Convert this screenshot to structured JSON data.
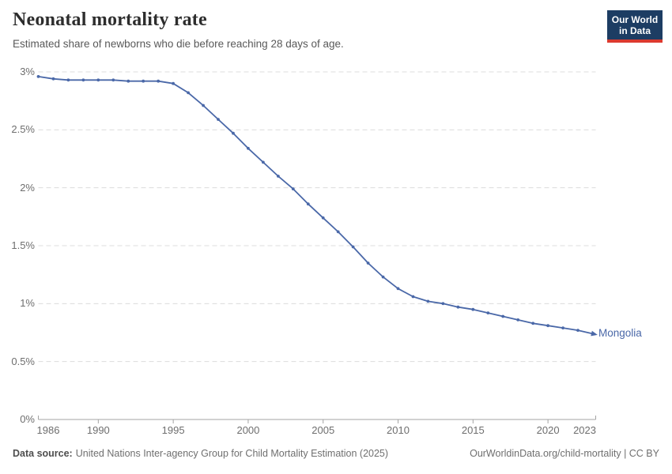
{
  "header": {
    "title": "Neonatal mortality rate",
    "subtitle": "Estimated share of newborns who die before reaching 28 days of age.",
    "logo": {
      "line1": "Our World",
      "line2": "in Data",
      "bg": "#1d3d63",
      "accent": "#dc3a2f"
    }
  },
  "chart_data": {
    "type": "line",
    "title": "Neonatal mortality rate",
    "unit": "%",
    "xlim": [
      1986,
      2023
    ],
    "ylim": [
      0,
      3
    ],
    "grid": "horizontal-dashed",
    "legend_position": "end-of-line-label",
    "colors": {
      "grid": "#dcdcdc",
      "axis": "#a3a3a3",
      "tick_text": "#6e6e6e"
    },
    "x_ticks": [
      {
        "value": 1986,
        "label": "1986"
      },
      {
        "value": 1990,
        "label": "1990"
      },
      {
        "value": 1995,
        "label": "1995"
      },
      {
        "value": 2000,
        "label": "2000"
      },
      {
        "value": 2005,
        "label": "2005"
      },
      {
        "value": 2010,
        "label": "2010"
      },
      {
        "value": 2015,
        "label": "2015"
      },
      {
        "value": 2020,
        "label": "2020"
      },
      {
        "value": 2023,
        "label": "2023"
      }
    ],
    "y_ticks": [
      {
        "value": 0,
        "label": "0%"
      },
      {
        "value": 0.5,
        "label": "0.5%"
      },
      {
        "value": 1,
        "label": "1%"
      },
      {
        "value": 1.5,
        "label": "1.5%"
      },
      {
        "value": 2,
        "label": "2%"
      },
      {
        "value": 2.5,
        "label": "2.5%"
      },
      {
        "value": 3,
        "label": "3%"
      }
    ],
    "series": [
      {
        "name": "Mongolia",
        "color": "#4a68a8",
        "x": [
          1986,
          1987,
          1988,
          1989,
          1990,
          1991,
          1992,
          1993,
          1994,
          1995,
          1996,
          1997,
          1998,
          1999,
          2000,
          2001,
          2002,
          2003,
          2004,
          2005,
          2006,
          2007,
          2008,
          2009,
          2010,
          2011,
          2012,
          2013,
          2014,
          2015,
          2016,
          2017,
          2018,
          2019,
          2020,
          2021,
          2022,
          2023
        ],
        "values": [
          2.96,
          2.94,
          2.93,
          2.93,
          2.93,
          2.93,
          2.92,
          2.92,
          2.92,
          2.9,
          2.82,
          2.71,
          2.59,
          2.47,
          2.34,
          2.22,
          2.1,
          1.99,
          1.86,
          1.74,
          1.62,
          1.49,
          1.35,
          1.23,
          1.13,
          1.06,
          1.02,
          1.0,
          0.97,
          0.95,
          0.92,
          0.89,
          0.86,
          0.83,
          0.81,
          0.79,
          0.77,
          0.74
        ]
      }
    ]
  },
  "footer": {
    "source_label": "Data source:",
    "source_text": "United Nations Inter-agency Group for Child Mortality Estimation (2025)",
    "right_text": "OurWorldinData.org/child-mortality | CC BY"
  }
}
